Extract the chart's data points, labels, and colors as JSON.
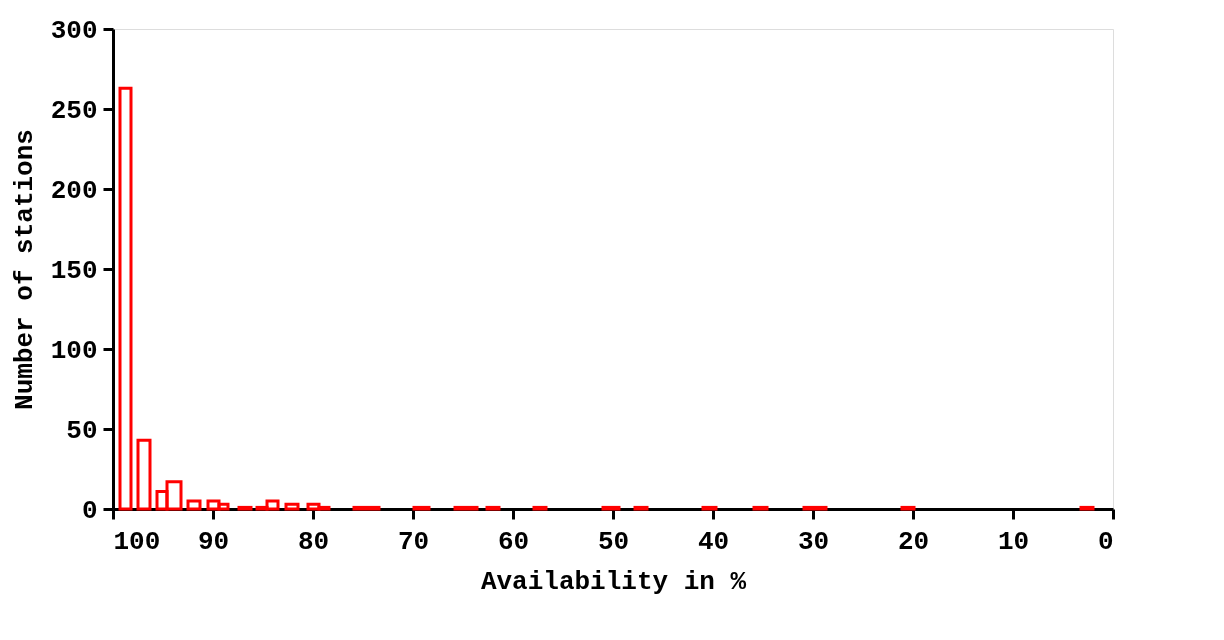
{
  "chart_data": {
    "type": "histogram",
    "xlabel": "Availability in %",
    "ylabel": "Number of stations",
    "bins": [
      99.3,
      98.2,
      97.5,
      96.3,
      95.6,
      94.6,
      93.2,
      92.5,
      91.3,
      90.5,
      89.4,
      88.5,
      87.4,
      86.2,
      85.6,
      84.6,
      83.5,
      82.7,
      81.5,
      80.5,
      79.4,
      78.4,
      75.9,
      73.4,
      69.9,
      68.4,
      65.8,
      63.6,
      62.6,
      61.4,
      57.9,
      56.7,
      51.0,
      49.4,
      47.8,
      46.6,
      41.0,
      39.7,
      35.9,
      34.6,
      30.9,
      28.7,
      21.1,
      19.9,
      3.2,
      2.0
    ],
    "values": [
      263,
      0,
      43,
      0,
      11,
      17,
      0,
      5,
      0,
      5,
      3,
      0,
      1,
      0,
      1,
      5,
      0,
      3,
      0,
      3,
      1,
      0,
      1,
      0,
      1,
      0,
      1,
      0,
      1,
      0,
      1,
      0,
      1,
      0,
      1,
      0,
      1,
      0,
      1,
      0,
      1,
      0,
      1,
      0,
      1
    ],
    "color": "#ff0000",
    "xlim": [
      100,
      0
    ],
    "xticks": [
      100,
      90,
      80,
      70,
      60,
      50,
      40,
      30,
      20,
      10,
      0
    ],
    "ylim": [
      0,
      300
    ],
    "yticks": [
      0,
      50,
      100,
      150,
      200,
      250,
      300
    ],
    "grid": false
  }
}
